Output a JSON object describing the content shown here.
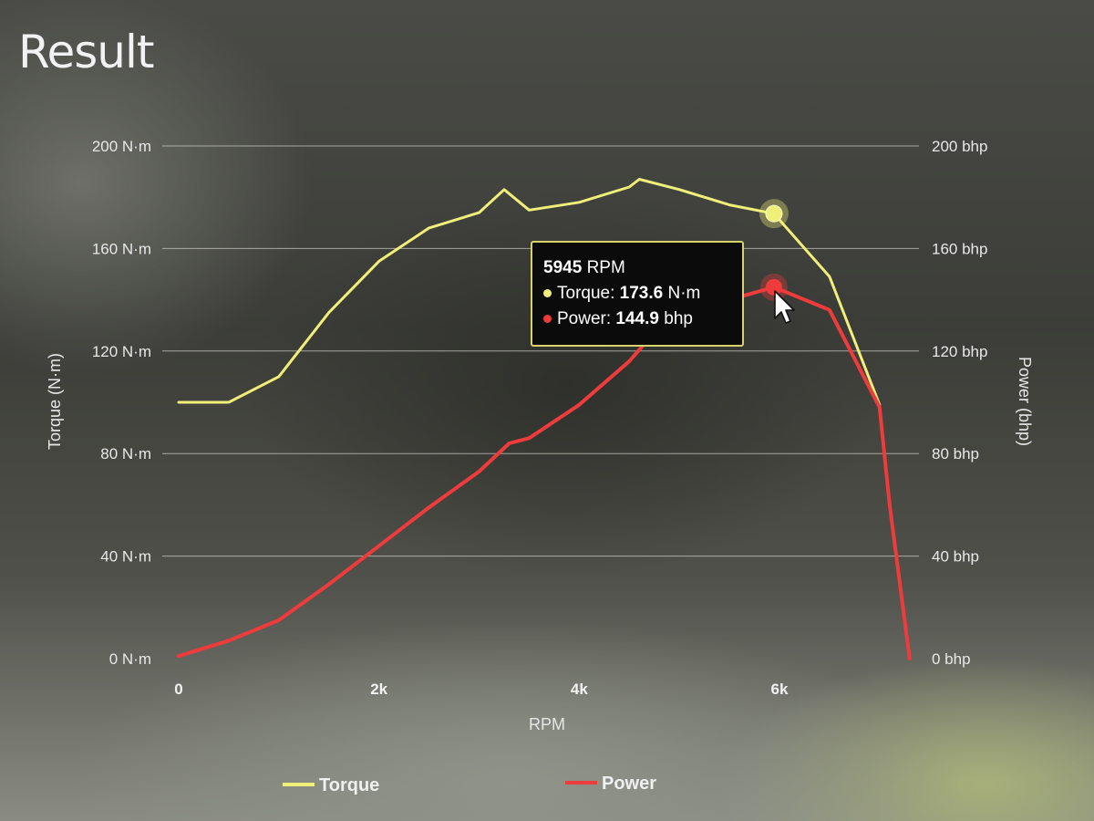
{
  "title": "Result",
  "colors": {
    "torque": "#f0ef7a",
    "power": "#ee3c3c",
    "grid": "#c9c9c4"
  },
  "chart_data": {
    "type": "line",
    "xlabel": "RPM",
    "xlim": [
      0,
      7500
    ],
    "x_ticks": [
      {
        "value": 0,
        "label": "0"
      },
      {
        "value": 2000,
        "label": "2k"
      },
      {
        "value": 4000,
        "label": "4k"
      },
      {
        "value": 6000,
        "label": "6k"
      }
    ],
    "y_left": {
      "label": "Torque (N·m)",
      "lim": [
        0,
        200
      ],
      "ticks": [
        {
          "value": 0,
          "label": "0 N·m"
        },
        {
          "value": 40,
          "label": "40 N·m"
        },
        {
          "value": 80,
          "label": "80 N·m"
        },
        {
          "value": 120,
          "label": "120 N·m"
        },
        {
          "value": 160,
          "label": "160 N·m"
        },
        {
          "value": 200,
          "label": "200 N·m"
        }
      ]
    },
    "y_right": {
      "label": "Power (bhp)",
      "lim": [
        0,
        200
      ],
      "ticks": [
        {
          "value": 0,
          "label": "0 bhp"
        },
        {
          "value": 40,
          "label": "40 bhp"
        },
        {
          "value": 80,
          "label": "80 bhp"
        },
        {
          "value": 120,
          "label": "120 bhp"
        },
        {
          "value": 160,
          "label": "160 bhp"
        },
        {
          "value": 200,
          "label": "200 bhp"
        }
      ]
    },
    "grid": true,
    "legend": "bottom",
    "series": [
      {
        "name": "Torque",
        "axis": "left",
        "x": [
          0,
          500,
          1000,
          1500,
          2000,
          2500,
          3000,
          3250,
          3500,
          4000,
          4500,
          4600,
          5000,
          5500,
          5945,
          6500,
          7000
        ],
        "y": [
          100,
          100,
          110,
          135,
          155,
          168,
          174,
          183,
          175,
          178,
          184,
          187,
          183,
          177,
          173.6,
          149,
          99
        ]
      },
      {
        "name": "Power",
        "axis": "right",
        "x": [
          0,
          500,
          1000,
          1500,
          2000,
          2500,
          3000,
          3300,
          3500,
          4000,
          4500,
          4700,
          5000,
          5500,
          5945,
          6500,
          7000,
          7100,
          7300
        ],
        "y": [
          1,
          7,
          15,
          29,
          44,
          59,
          73,
          84,
          86,
          99,
          116,
          125,
          133,
          140,
          144.9,
          136,
          98,
          60,
          0
        ]
      }
    ],
    "tooltip": {
      "rpm_value": "5945",
      "rpm_unit": "RPM",
      "torque_label": "Torque:",
      "torque_value": "173.6",
      "torque_unit": "N·m",
      "power_label": "Power:",
      "power_value": "144.9",
      "power_unit": "bhp",
      "x": 5945
    }
  }
}
